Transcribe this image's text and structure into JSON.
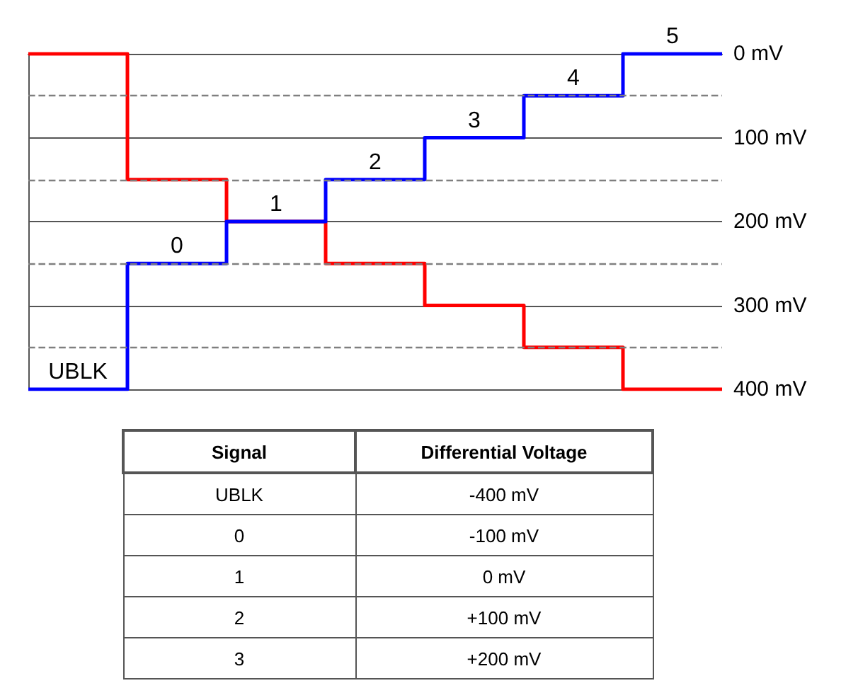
{
  "chart_data": {
    "type": "step",
    "categories": [
      null,
      null,
      null,
      null,
      null,
      null,
      null,
      null
    ],
    "series": [
      {
        "color": "#ff0000",
        "values": [
          0,
          150,
          200,
          250,
          300,
          350,
          400,
          400
        ]
      },
      {
        "color": "#0000ff",
        "values": [
          400,
          250,
          200,
          150,
          100,
          50,
          0,
          0
        ]
      }
    ],
    "ylim": [
      400,
      0
    ],
    "yticks": [
      {
        "value": 0,
        "label": "0 mV"
      },
      {
        "value": 100,
        "label": "100 mV"
      },
      {
        "value": 200,
        "label": "200 mV"
      },
      {
        "value": 300,
        "label": "300 mV"
      },
      {
        "value": 400,
        "label": "400 mV"
      }
    ],
    "grid": "y",
    "tick_labels": "y",
    "line_style": "solid",
    "marker": "none",
    "ref_lines": [
      {
        "axis": "y",
        "value": 50,
        "line_style": "dashed",
        "color": "#7f7f7f"
      },
      {
        "axis": "y",
        "value": 150,
        "line_style": "dashed",
        "color": "#7f7f7f"
      },
      {
        "axis": "y",
        "value": 250,
        "line_style": "dashed",
        "color": "#7f7f7f"
      },
      {
        "axis": "y",
        "value": 350,
        "line_style": "dashed",
        "color": "#7f7f7f"
      }
    ],
    "annotations": [
      {
        "text": "UBLK",
        "y": 400
      },
      {
        "text": "0",
        "y": 250
      },
      {
        "text": "1",
        "y": 200
      },
      {
        "text": "2",
        "y": 150
      },
      {
        "text": "3",
        "y": 100
      },
      {
        "text": "4",
        "y": 50
      },
      {
        "text": "5",
        "y": 0
      },
      "Signal",
      "Differential Voltage",
      "UBLK",
      "-400 mV",
      "0",
      "-100 mV",
      "1",
      "0 mV",
      "2",
      "+100 mV",
      "3",
      "+200 mV"
    ]
  }
}
